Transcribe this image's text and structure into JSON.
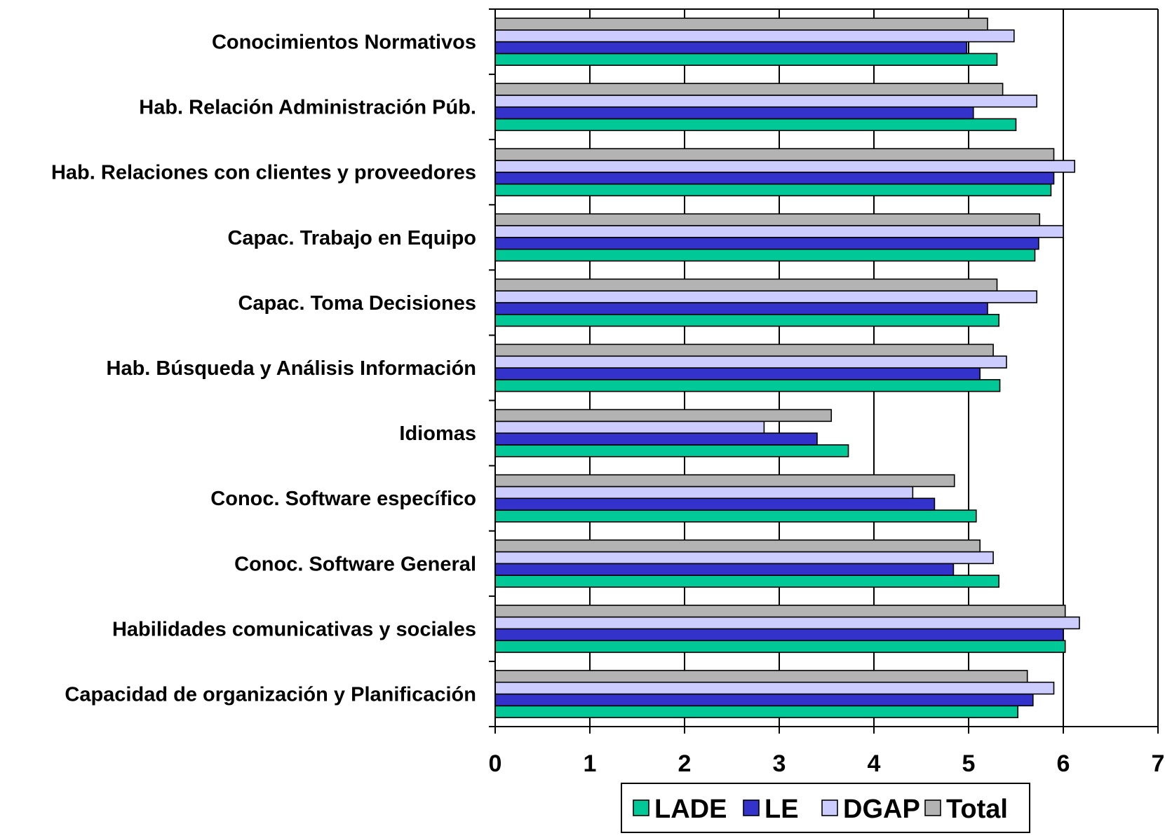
{
  "chart_data": {
    "type": "bar",
    "orientation": "horizontal",
    "categories": [
      "Conocimientos Normativos",
      "Hab. Relación Administración Púb.",
      "Hab. Relaciones con clientes y proveedores",
      "Capac. Trabajo en Equipo",
      "Capac. Toma Decisiones",
      "Hab. Búsqueda y Análisis Información",
      "Idiomas",
      "Conoc. Software específico",
      "Conoc. Software General",
      "Habilidades comunicativas y sociales",
      "Capacidad de organización y Planificación"
    ],
    "series": [
      {
        "name": "LADE",
        "color": "#00c896",
        "values": [
          5.3,
          5.5,
          5.87,
          5.7,
          5.32,
          5.33,
          3.73,
          5.08,
          5.32,
          6.02,
          5.52
        ]
      },
      {
        "name": "LE",
        "color": "#3333cc",
        "values": [
          4.98,
          5.05,
          5.9,
          5.74,
          5.2,
          5.12,
          3.4,
          4.64,
          4.84,
          6.0,
          5.68
        ]
      },
      {
        "name": "DGAP",
        "color": "#ccccff",
        "values": [
          5.48,
          5.72,
          6.12,
          6.0,
          5.72,
          5.4,
          2.84,
          4.41,
          5.26,
          6.17,
          5.9
        ]
      },
      {
        "name": "Total",
        "color": "#b3b3b3",
        "values": [
          5.2,
          5.36,
          5.9,
          5.75,
          5.3,
          5.26,
          3.55,
          4.85,
          5.12,
          6.02,
          5.62
        ]
      }
    ],
    "xlim": [
      0,
      7
    ],
    "xticks": [
      "0",
      "1",
      "2",
      "3",
      "4",
      "5",
      "6",
      "7"
    ],
    "grid": "vertical",
    "legend": "bottom"
  }
}
